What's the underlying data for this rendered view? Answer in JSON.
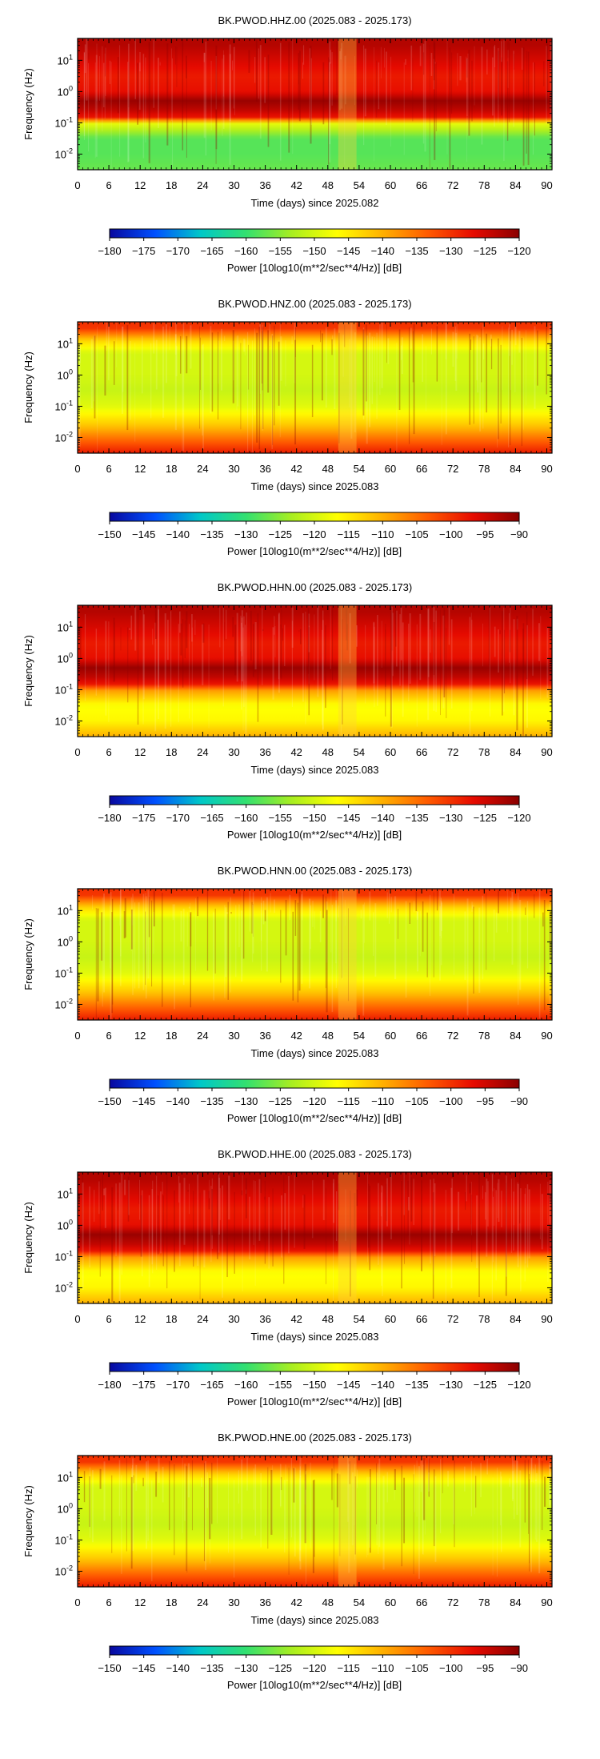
{
  "chart_data": [
    {
      "type": "heatmap",
      "title": "BK.PWOD.HHZ.00 (2025.083 - 2025.173)",
      "xlabel": "Time (days) since 2025.082",
      "ylabel": "Frequency (Hz)",
      "xlim": [
        0,
        91
      ],
      "ylim_log10": [
        -2.5,
        1.7
      ],
      "x_ticks": [
        "0",
        "6",
        "12",
        "18",
        "24",
        "30",
        "36",
        "42",
        "48",
        "54",
        "60",
        "66",
        "72",
        "78",
        "84",
        "90"
      ],
      "y_ticks": [
        {
          "base": "10",
          "exp": "1",
          "value": 1
        },
        {
          "base": "10",
          "exp": "0",
          "value": 0
        },
        {
          "base": "10",
          "exp": "-1",
          "value": -1
        },
        {
          "base": "10",
          "exp": "-2",
          "value": -2
        }
      ],
      "colorbar": {
        "label": "Power [10log10(m**2/sec**4/Hz)] [dB]",
        "range": [
          -180,
          -120
        ],
        "ticks": [
          "-180",
          "-175",
          "-170",
          "-165",
          "-160",
          "-155",
          "-150",
          "-145",
          "-140",
          "-135",
          "-130",
          "-125",
          "-120"
        ]
      },
      "power_profile_db": [
        [
          1.5,
          -123
        ],
        [
          0.9,
          -126
        ],
        [
          0.5,
          -128
        ],
        [
          0.0,
          -127
        ],
        [
          -0.3,
          -121
        ],
        [
          -0.6,
          -124
        ],
        [
          -0.85,
          -128
        ],
        [
          -1.0,
          -148
        ],
        [
          -1.5,
          -158
        ],
        [
          -2.0,
          -158
        ],
        [
          -2.5,
          -157
        ]
      ]
    },
    {
      "type": "heatmap",
      "title": "BK.PWOD.HNZ.00 (2025.083 - 2025.173)",
      "xlabel": "Time (days) since 2025.083",
      "ylabel": "Frequency (Hz)",
      "xlim": [
        0,
        91
      ],
      "ylim_log10": [
        -2.5,
        1.7
      ],
      "x_ticks": [
        "0",
        "6",
        "12",
        "18",
        "24",
        "30",
        "36",
        "42",
        "48",
        "54",
        "60",
        "66",
        "72",
        "78",
        "84",
        "90"
      ],
      "y_ticks": [
        {
          "base": "10",
          "exp": "1",
          "value": 1
        },
        {
          "base": "10",
          "exp": "0",
          "value": 0
        },
        {
          "base": "10",
          "exp": "-1",
          "value": -1
        },
        {
          "base": "10",
          "exp": "-2",
          "value": -2
        }
      ],
      "colorbar": {
        "label": "Power [10log10(m**2/sec**4/Hz)] [dB]",
        "range": [
          -150,
          -90
        ],
        "ticks": [
          "-150",
          "-145",
          "-140",
          "-135",
          "-130",
          "-125",
          "-120",
          "-115",
          "-110",
          "-105",
          "-100",
          "-95",
          "-90"
        ]
      },
      "power_profile_db": [
        [
          1.5,
          -100
        ],
        [
          1.1,
          -113
        ],
        [
          0.7,
          -120
        ],
        [
          0.0,
          -120
        ],
        [
          -0.5,
          -121
        ],
        [
          -1.0,
          -119
        ],
        [
          -1.6,
          -112
        ],
        [
          -2.1,
          -104
        ],
        [
          -2.5,
          -98
        ]
      ]
    },
    {
      "type": "heatmap",
      "title": "BK.PWOD.HHN.00 (2025.083 - 2025.173)",
      "xlabel": "Time (days) since 2025.083",
      "ylabel": "Frequency (Hz)",
      "xlim": [
        0,
        91
      ],
      "ylim_log10": [
        -2.5,
        1.7
      ],
      "x_ticks": [
        "0",
        "6",
        "12",
        "18",
        "24",
        "30",
        "36",
        "42",
        "48",
        "54",
        "60",
        "66",
        "72",
        "78",
        "84",
        "90"
      ],
      "y_ticks": [
        {
          "base": "10",
          "exp": "1",
          "value": 1
        },
        {
          "base": "10",
          "exp": "0",
          "value": 0
        },
        {
          "base": "10",
          "exp": "-1",
          "value": -1
        },
        {
          "base": "10",
          "exp": "-2",
          "value": -2
        }
      ],
      "colorbar": {
        "label": "Power [10log10(m**2/sec**4/Hz)] [dB]",
        "range": [
          -180,
          -120
        ],
        "ticks": [
          "-180",
          "-175",
          "-170",
          "-165",
          "-160",
          "-155",
          "-150",
          "-145",
          "-140",
          "-135",
          "-130",
          "-125",
          "-120"
        ]
      },
      "power_profile_db": [
        [
          1.5,
          -123
        ],
        [
          0.9,
          -126
        ],
        [
          0.5,
          -128
        ],
        [
          0.0,
          -127
        ],
        [
          -0.3,
          -121
        ],
        [
          -0.6,
          -124
        ],
        [
          -0.85,
          -128
        ],
        [
          -1.0,
          -138
        ],
        [
          -1.5,
          -147
        ],
        [
          -2.0,
          -146
        ],
        [
          -2.5,
          -140
        ]
      ]
    },
    {
      "type": "heatmap",
      "title": "BK.PWOD.HNN.00 (2025.083 - 2025.173)",
      "xlabel": "Time (days) since 2025.083",
      "ylabel": "Frequency (Hz)",
      "xlim": [
        0,
        91
      ],
      "ylim_log10": [
        -2.5,
        1.7
      ],
      "x_ticks": [
        "0",
        "6",
        "12",
        "18",
        "24",
        "30",
        "36",
        "42",
        "48",
        "54",
        "60",
        "66",
        "72",
        "78",
        "84",
        "90"
      ],
      "y_ticks": [
        {
          "base": "10",
          "exp": "1",
          "value": 1
        },
        {
          "base": "10",
          "exp": "0",
          "value": 0
        },
        {
          "base": "10",
          "exp": "-1",
          "value": -1
        },
        {
          "base": "10",
          "exp": "-2",
          "value": -2
        }
      ],
      "colorbar": {
        "label": "Power [10log10(m**2/sec**4/Hz)] [dB]",
        "range": [
          -150,
          -90
        ],
        "ticks": [
          "-150",
          "-145",
          "-140",
          "-135",
          "-130",
          "-125",
          "-120",
          "-115",
          "-110",
          "-105",
          "-100",
          "-95",
          "-90"
        ]
      },
      "power_profile_db": [
        [
          1.5,
          -100
        ],
        [
          1.1,
          -113
        ],
        [
          0.7,
          -120
        ],
        [
          0.0,
          -120
        ],
        [
          -0.5,
          -121
        ],
        [
          -1.0,
          -119
        ],
        [
          -1.6,
          -112
        ],
        [
          -2.1,
          -104
        ],
        [
          -2.5,
          -98
        ]
      ]
    },
    {
      "type": "heatmap",
      "title": "BK.PWOD.HHE.00 (2025.083 - 2025.173)",
      "xlabel": "Time (days) since 2025.083",
      "ylabel": "Frequency (Hz)",
      "xlim": [
        0,
        91
      ],
      "ylim_log10": [
        -2.5,
        1.7
      ],
      "x_ticks": [
        "0",
        "6",
        "12",
        "18",
        "24",
        "30",
        "36",
        "42",
        "48",
        "54",
        "60",
        "66",
        "72",
        "78",
        "84",
        "90"
      ],
      "y_ticks": [
        {
          "base": "10",
          "exp": "1",
          "value": 1
        },
        {
          "base": "10",
          "exp": "0",
          "value": 0
        },
        {
          "base": "10",
          "exp": "-1",
          "value": -1
        },
        {
          "base": "10",
          "exp": "-2",
          "value": -2
        }
      ],
      "colorbar": {
        "label": "Power [10log10(m**2/sec**4/Hz)] [dB]",
        "range": [
          -180,
          -120
        ],
        "ticks": [
          "-180",
          "-175",
          "-170",
          "-165",
          "-160",
          "-155",
          "-150",
          "-145",
          "-140",
          "-135",
          "-130",
          "-125",
          "-120"
        ]
      },
      "power_profile_db": [
        [
          1.5,
          -123
        ],
        [
          0.9,
          -126
        ],
        [
          0.5,
          -128
        ],
        [
          0.0,
          -127
        ],
        [
          -0.3,
          -121
        ],
        [
          -0.6,
          -124
        ],
        [
          -0.85,
          -128
        ],
        [
          -1.0,
          -138
        ],
        [
          -1.5,
          -147
        ],
        [
          -2.0,
          -146
        ],
        [
          -2.5,
          -140
        ]
      ]
    },
    {
      "type": "heatmap",
      "title": "BK.PWOD.HNE.00 (2025.083 - 2025.173)",
      "xlabel": "Time (days) since 2025.083",
      "ylabel": "Frequency (Hz)",
      "xlim": [
        0,
        91
      ],
      "ylim_log10": [
        -2.5,
        1.7
      ],
      "x_ticks": [
        "0",
        "6",
        "12",
        "18",
        "24",
        "30",
        "36",
        "42",
        "48",
        "54",
        "60",
        "66",
        "72",
        "78",
        "84",
        "90"
      ],
      "y_ticks": [
        {
          "base": "10",
          "exp": "1",
          "value": 1
        },
        {
          "base": "10",
          "exp": "0",
          "value": 0
        },
        {
          "base": "10",
          "exp": "-1",
          "value": -1
        },
        {
          "base": "10",
          "exp": "-2",
          "value": -2
        }
      ],
      "colorbar": {
        "label": "Power [10log10(m**2/sec**4/Hz)] [dB]",
        "range": [
          -150,
          -90
        ],
        "ticks": [
          "-150",
          "-145",
          "-140",
          "-135",
          "-130",
          "-125",
          "-120",
          "-115",
          "-110",
          "-105",
          "-100",
          "-95",
          "-90"
        ]
      },
      "power_profile_db": [
        [
          1.5,
          -100
        ],
        [
          1.1,
          -113
        ],
        [
          0.7,
          -120
        ],
        [
          0.0,
          -120
        ],
        [
          -0.5,
          -121
        ],
        [
          -1.0,
          -119
        ],
        [
          -1.6,
          -112
        ],
        [
          -2.1,
          -104
        ],
        [
          -2.5,
          -98
        ]
      ]
    }
  ],
  "colormap": [
    "#08089e",
    "#0050ff",
    "#00c8c8",
    "#33e070",
    "#a8ee20",
    "#ffff00",
    "#ffb000",
    "#ff5a00",
    "#e60a00",
    "#8a0000"
  ]
}
